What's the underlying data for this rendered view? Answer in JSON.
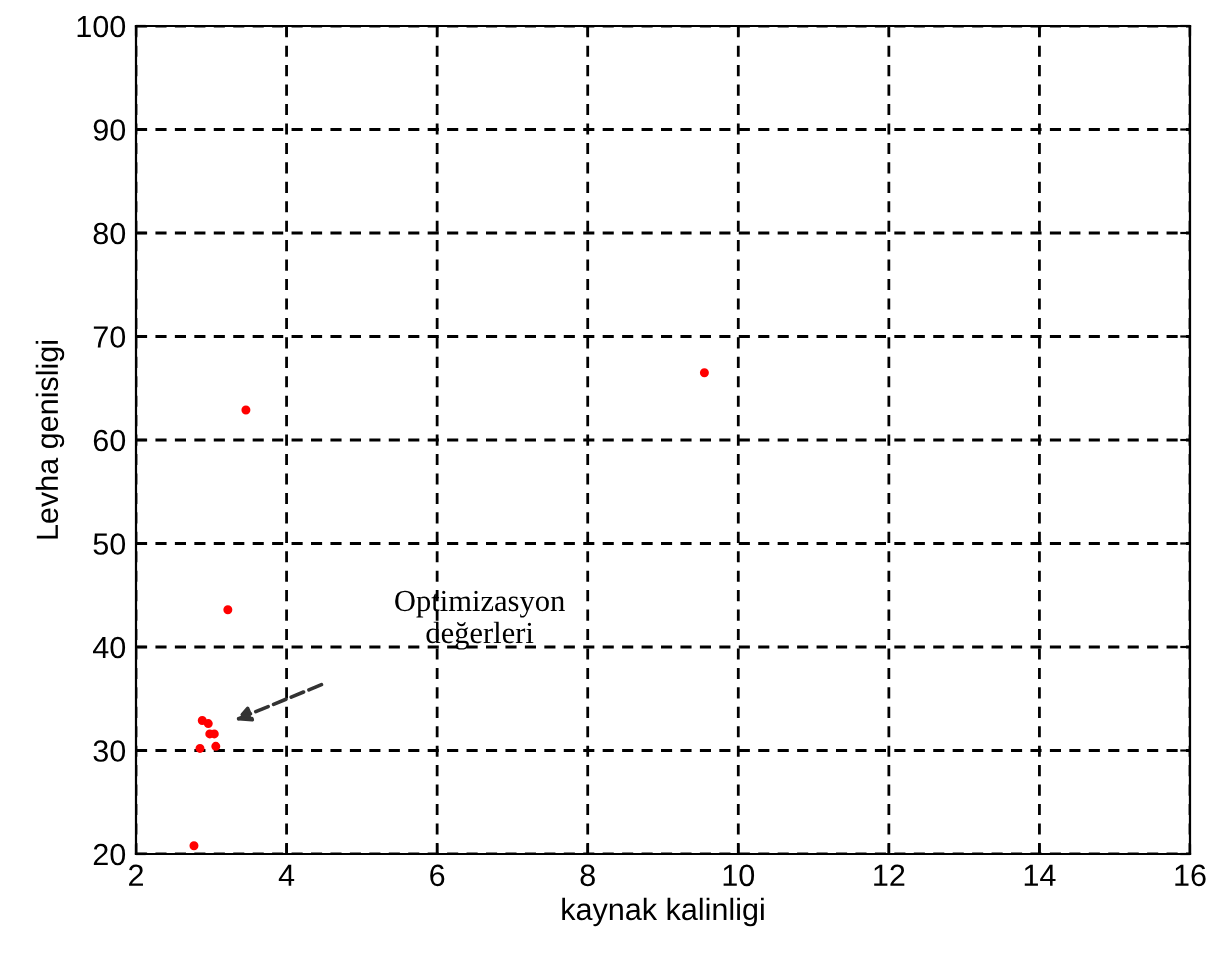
{
  "chart_data": {
    "type": "scatter",
    "xlabel": "kaynak kalinligi",
    "ylabel": "Levha genisligi",
    "x": [
      2.77,
      3.46,
      9.55,
      3.22,
      2.88,
      2.96,
      2.98,
      3.04,
      2.85,
      3.06
    ],
    "series": [
      {
        "color": "#ff0000",
        "values": [
          20.8,
          62.9,
          66.5,
          43.6,
          32.9,
          32.6,
          31.6,
          31.6,
          30.2,
          30.4
        ]
      }
    ],
    "xlim": [
      2,
      16
    ],
    "ylim": [
      20,
      100
    ],
    "xticks": [
      2,
      4,
      6,
      8,
      10,
      12,
      14,
      16
    ],
    "yticks": [
      20,
      30,
      40,
      50,
      60,
      70,
      80,
      90,
      100
    ],
    "grid": true,
    "marker": "circle",
    "annotations": [
      "Optimizasyon\ndeğerleri"
    ]
  }
}
